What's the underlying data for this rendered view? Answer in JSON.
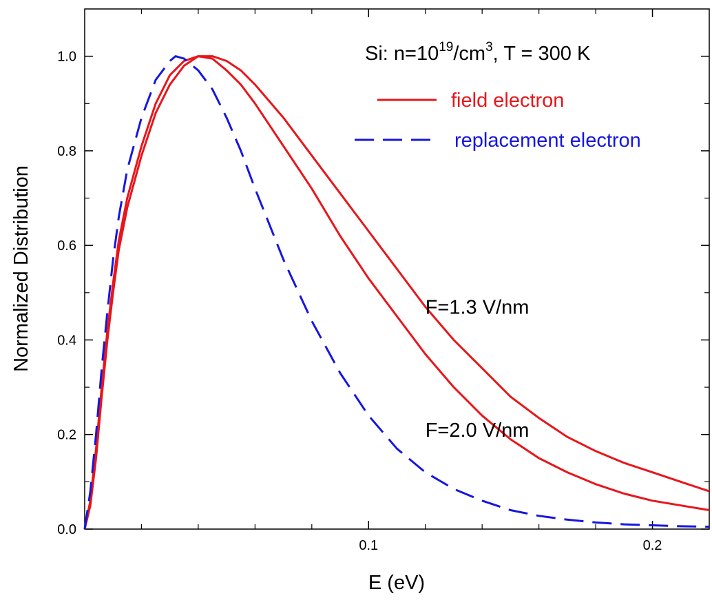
{
  "chart_data": {
    "type": "line",
    "xlabel": "E (eV)",
    "ylabel": "Normalized Distribution",
    "xlim": [
      0.0,
      0.22
    ],
    "ylim": [
      0.0,
      1.1
    ],
    "x_ticks": [
      {
        "value": 0.1,
        "label": "0.1"
      },
      {
        "value": 0.2,
        "label": "0.2"
      }
    ],
    "x_minor_ticks": [
      0.02,
      0.04,
      0.06,
      0.08,
      0.12,
      0.14,
      0.16,
      0.18
    ],
    "y_ticks": [
      {
        "value": 0.0,
        "label": "0.0"
      },
      {
        "value": 0.2,
        "label": "0.2"
      },
      {
        "value": 0.4,
        "label": "0.4"
      },
      {
        "value": 0.6,
        "label": "0.6"
      },
      {
        "value": 0.8,
        "label": "0.8"
      },
      {
        "value": 1.0,
        "label": "1.0"
      }
    ],
    "y_minor_ticks": [
      0.1,
      0.3,
      0.5,
      0.7,
      0.9
    ],
    "grid": false,
    "title_parts": {
      "prefix": "Si:  n=10",
      "sup1": "19",
      "middle": "/cm",
      "sup2": "3",
      "suffix": ",  T = 300 K"
    },
    "legend": {
      "position": "top-right",
      "entries": [
        {
          "label": "field electron",
          "color": "#e8161b",
          "dash": "solid"
        },
        {
          "label": "replacement electron",
          "color": "#1616e0",
          "dash": "dashed"
        }
      ]
    },
    "annotations": [
      {
        "text": "F=1.3 V/nm",
        "x": 0.12,
        "y": 0.455
      },
      {
        "text": "F=2.0 V/nm",
        "x": 0.12,
        "y": 0.195
      }
    ],
    "series": [
      {
        "label": "field electron, F=1.3 V/nm",
        "color": "#e8161b",
        "dash": "solid",
        "points": [
          [
            0,
            0
          ],
          [
            0.002,
            0.05
          ],
          [
            0.004,
            0.15
          ],
          [
            0.006,
            0.28
          ],
          [
            0.008,
            0.4
          ],
          [
            0.01,
            0.5
          ],
          [
            0.012,
            0.59
          ],
          [
            0.015,
            0.68
          ],
          [
            0.02,
            0.79
          ],
          [
            0.025,
            0.88
          ],
          [
            0.03,
            0.94
          ],
          [
            0.035,
            0.98
          ],
          [
            0.04,
            1.0
          ],
          [
            0.045,
            1.0
          ],
          [
            0.05,
            0.99
          ],
          [
            0.055,
            0.97
          ],
          [
            0.06,
            0.94
          ],
          [
            0.07,
            0.87
          ],
          [
            0.08,
            0.79
          ],
          [
            0.09,
            0.71
          ],
          [
            0.1,
            0.63
          ],
          [
            0.11,
            0.55
          ],
          [
            0.12,
            0.47
          ],
          [
            0.13,
            0.4
          ],
          [
            0.14,
            0.34
          ],
          [
            0.15,
            0.28
          ],
          [
            0.16,
            0.235
          ],
          [
            0.17,
            0.195
          ],
          [
            0.18,
            0.165
          ],
          [
            0.19,
            0.14
          ],
          [
            0.2,
            0.12
          ],
          [
            0.21,
            0.1
          ],
          [
            0.22,
            0.08
          ]
        ]
      },
      {
        "label": "field electron, F=2.0 V/nm",
        "color": "#e8161b",
        "dash": "solid",
        "points": [
          [
            0,
            0
          ],
          [
            0.002,
            0.06
          ],
          [
            0.004,
            0.17
          ],
          [
            0.006,
            0.3
          ],
          [
            0.008,
            0.42
          ],
          [
            0.01,
            0.52
          ],
          [
            0.012,
            0.61
          ],
          [
            0.015,
            0.7
          ],
          [
            0.02,
            0.81
          ],
          [
            0.025,
            0.9
          ],
          [
            0.03,
            0.96
          ],
          [
            0.035,
            0.99
          ],
          [
            0.04,
            1.0
          ],
          [
            0.045,
            0.995
          ],
          [
            0.05,
            0.97
          ],
          [
            0.055,
            0.94
          ],
          [
            0.06,
            0.9
          ],
          [
            0.07,
            0.81
          ],
          [
            0.08,
            0.72
          ],
          [
            0.09,
            0.62
          ],
          [
            0.1,
            0.53
          ],
          [
            0.11,
            0.45
          ],
          [
            0.12,
            0.37
          ],
          [
            0.13,
            0.3
          ],
          [
            0.14,
            0.24
          ],
          [
            0.15,
            0.19
          ],
          [
            0.16,
            0.15
          ],
          [
            0.17,
            0.12
          ],
          [
            0.18,
            0.095
          ],
          [
            0.19,
            0.075
          ],
          [
            0.2,
            0.06
          ],
          [
            0.21,
            0.05
          ],
          [
            0.22,
            0.04
          ]
        ]
      },
      {
        "label": "replacement electron",
        "color": "#1616e0",
        "dash": "dashed",
        "points": [
          [
            0,
            0
          ],
          [
            0.002,
            0.08
          ],
          [
            0.004,
            0.2
          ],
          [
            0.006,
            0.34
          ],
          [
            0.008,
            0.46
          ],
          [
            0.01,
            0.57
          ],
          [
            0.012,
            0.66
          ],
          [
            0.015,
            0.76
          ],
          [
            0.02,
            0.87
          ],
          [
            0.025,
            0.95
          ],
          [
            0.03,
            0.99
          ],
          [
            0.032,
            1.0
          ],
          [
            0.035,
            0.995
          ],
          [
            0.04,
            0.97
          ],
          [
            0.045,
            0.93
          ],
          [
            0.05,
            0.87
          ],
          [
            0.055,
            0.8
          ],
          [
            0.06,
            0.72
          ],
          [
            0.07,
            0.57
          ],
          [
            0.08,
            0.44
          ],
          [
            0.09,
            0.33
          ],
          [
            0.1,
            0.24
          ],
          [
            0.11,
            0.17
          ],
          [
            0.12,
            0.12
          ],
          [
            0.13,
            0.085
          ],
          [
            0.14,
            0.06
          ],
          [
            0.15,
            0.04
          ],
          [
            0.16,
            0.028
          ],
          [
            0.17,
            0.02
          ],
          [
            0.18,
            0.014
          ],
          [
            0.19,
            0.01
          ],
          [
            0.2,
            0.008
          ],
          [
            0.21,
            0.006
          ],
          [
            0.22,
            0.005
          ]
        ]
      }
    ]
  }
}
